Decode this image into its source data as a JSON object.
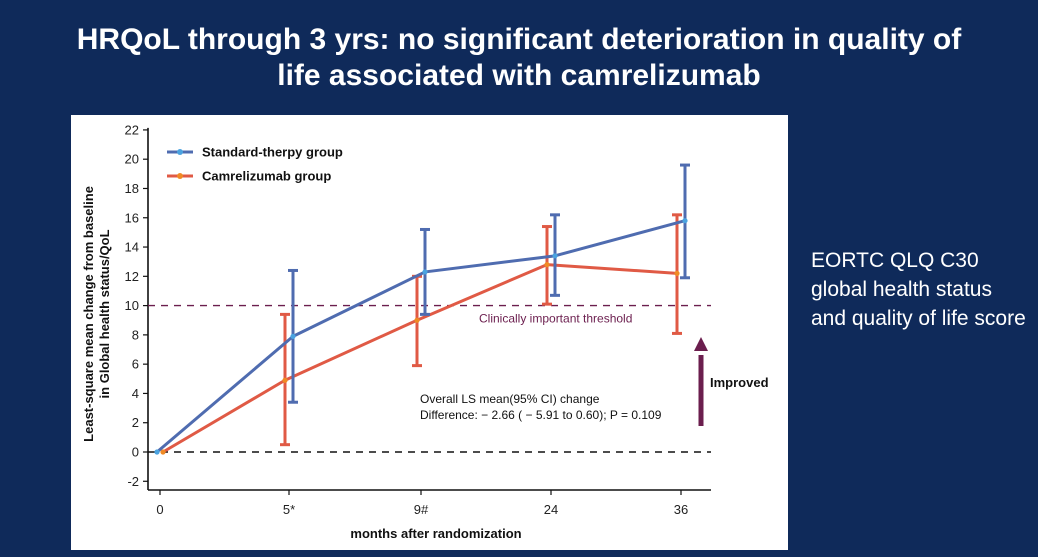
{
  "slide": {
    "title_line1": "HRQoL through 3 yrs: no significant deterioration in quality of",
    "title_line2": "life associated with camrelizumab",
    "side_note": "EORTC QLQ C30 global health status and quality of life score"
  },
  "colors": {
    "background": "#0f2a5a",
    "standard": "#4f6cb0",
    "camrelizumab": "#e05a45",
    "standard_marker": "#4ba3e0",
    "camrelizumab_marker": "#f08a24",
    "threshold": "#6b1e4e",
    "arrow": "#6b1e4e"
  },
  "chart_data": {
    "type": "line",
    "title": "",
    "xlabel": "months after randomization",
    "ylabel_line1": "Least-square mean change from baseline",
    "ylabel_line2": "in Global health status/QoL",
    "categories": [
      "0",
      "5*",
      "9#",
      "24",
      "36"
    ],
    "yticks": [
      "-2",
      "0",
      "2",
      "4",
      "6",
      "8",
      "10",
      "12",
      "14",
      "16",
      "18",
      "20",
      "22"
    ],
    "ylim": [
      -3,
      22
    ],
    "grid": false,
    "legend_position": "top-left",
    "series": [
      {
        "name": "Standard-therpy group",
        "values": [
          0,
          7.9,
          12.3,
          13.4,
          15.8
        ],
        "ci_lower": [
          null,
          3.4,
          9.4,
          10.7,
          11.9
        ],
        "ci_upper": [
          null,
          12.4,
          15.2,
          16.2,
          19.6
        ]
      },
      {
        "name": "Camrelizumab group",
        "values": [
          0,
          4.9,
          9.0,
          12.8,
          12.2
        ],
        "ci_lower": [
          null,
          0.5,
          5.9,
          10.1,
          8.1
        ],
        "ci_upper": [
          null,
          9.4,
          12.0,
          15.4,
          16.2
        ]
      }
    ],
    "reference_lines": [
      {
        "y": 10,
        "label": "Clinically important threshold",
        "style": "dashed"
      },
      {
        "y": 0,
        "label": "",
        "style": "dashed"
      }
    ],
    "annotations": {
      "note_line1": "Overall LS mean(95% CI) change",
      "note_line2": "Difference: − 2.66 ( − 5.91 to 0.60); P = 0.109",
      "arrow_label": "Improved"
    }
  }
}
